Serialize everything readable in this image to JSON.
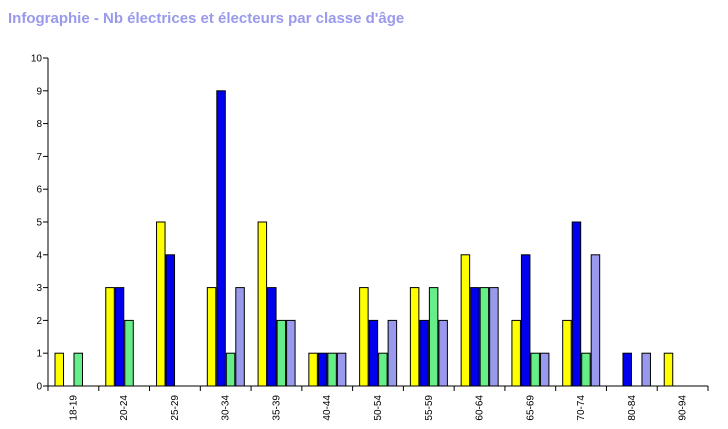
{
  "title": "Infographie - Nb électrices et électeurs par classe d'âge",
  "chart_data": {
    "type": "bar",
    "title": "Infographie - Nb électrices et électeurs par classe d'âge",
    "xlabel": "",
    "ylabel": "",
    "ylim": [
      0,
      10
    ],
    "yticks": [
      0,
      1,
      2,
      3,
      4,
      5,
      6,
      7,
      8,
      9,
      10
    ],
    "grid": false,
    "categories": [
      "18-19",
      "20-24",
      "25-29",
      "30-34",
      "35-39",
      "40-44",
      "50-54",
      "55-59",
      "60-64",
      "65-69",
      "70-74",
      "80-84",
      "90-94"
    ],
    "series": [
      {
        "color": "#ffff00",
        "values": [
          1,
          3,
          5,
          3,
          5,
          1,
          3,
          3,
          4,
          2,
          2,
          0,
          1
        ]
      },
      {
        "color": "#0000ee",
        "values": [
          0,
          3,
          4,
          9,
          3,
          1,
          2,
          2,
          3,
          4,
          5,
          1,
          0
        ]
      },
      {
        "color": "#66ee88",
        "values": [
          1,
          2,
          0,
          1,
          2,
          1,
          1,
          3,
          3,
          1,
          1,
          0,
          0
        ]
      },
      {
        "color": "#9999ee",
        "values": [
          0,
          0,
          0,
          3,
          2,
          1,
          2,
          2,
          3,
          1,
          4,
          1,
          0
        ]
      }
    ]
  }
}
